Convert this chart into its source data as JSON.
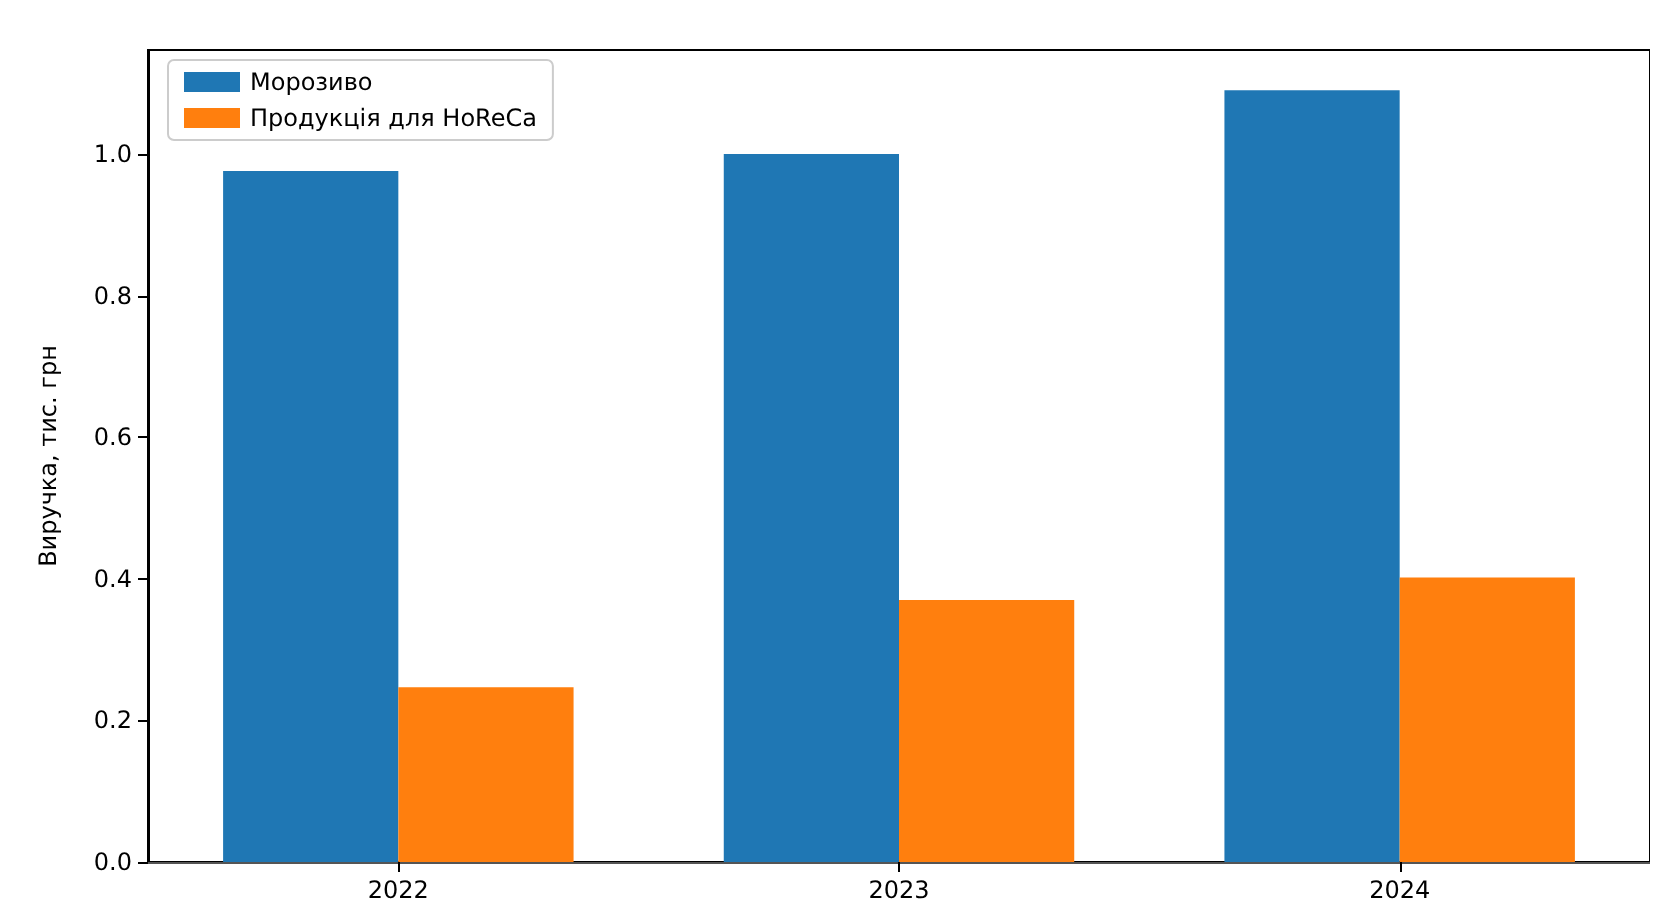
{
  "chart_data": {
    "type": "bar",
    "ylabel": "Виручка, тис. грн",
    "categories": [
      "2022",
      "2023",
      "2024"
    ],
    "series": [
      {
        "name": "Морозиво",
        "color": "#1f77b4",
        "values": [
          0.976,
          1.0,
          1.09
        ]
      },
      {
        "name": "Продукція для HoReCa",
        "color": "#ff7f0e",
        "values": [
          0.247,
          0.37,
          0.402
        ]
      }
    ],
    "ylim": [
      0,
      1.147
    ],
    "yticks": [
      {
        "value": 0,
        "label": "0.0"
      },
      {
        "value": 0.2,
        "label": "0.2"
      },
      {
        "value": 0.4,
        "label": "0.4"
      },
      {
        "value": 0.6,
        "label": "0.6"
      },
      {
        "value": 0.8,
        "label": "0.8"
      },
      {
        "value": 1.0,
        "label": "1.0"
      }
    ],
    "grid": false,
    "legend": "top left"
  }
}
